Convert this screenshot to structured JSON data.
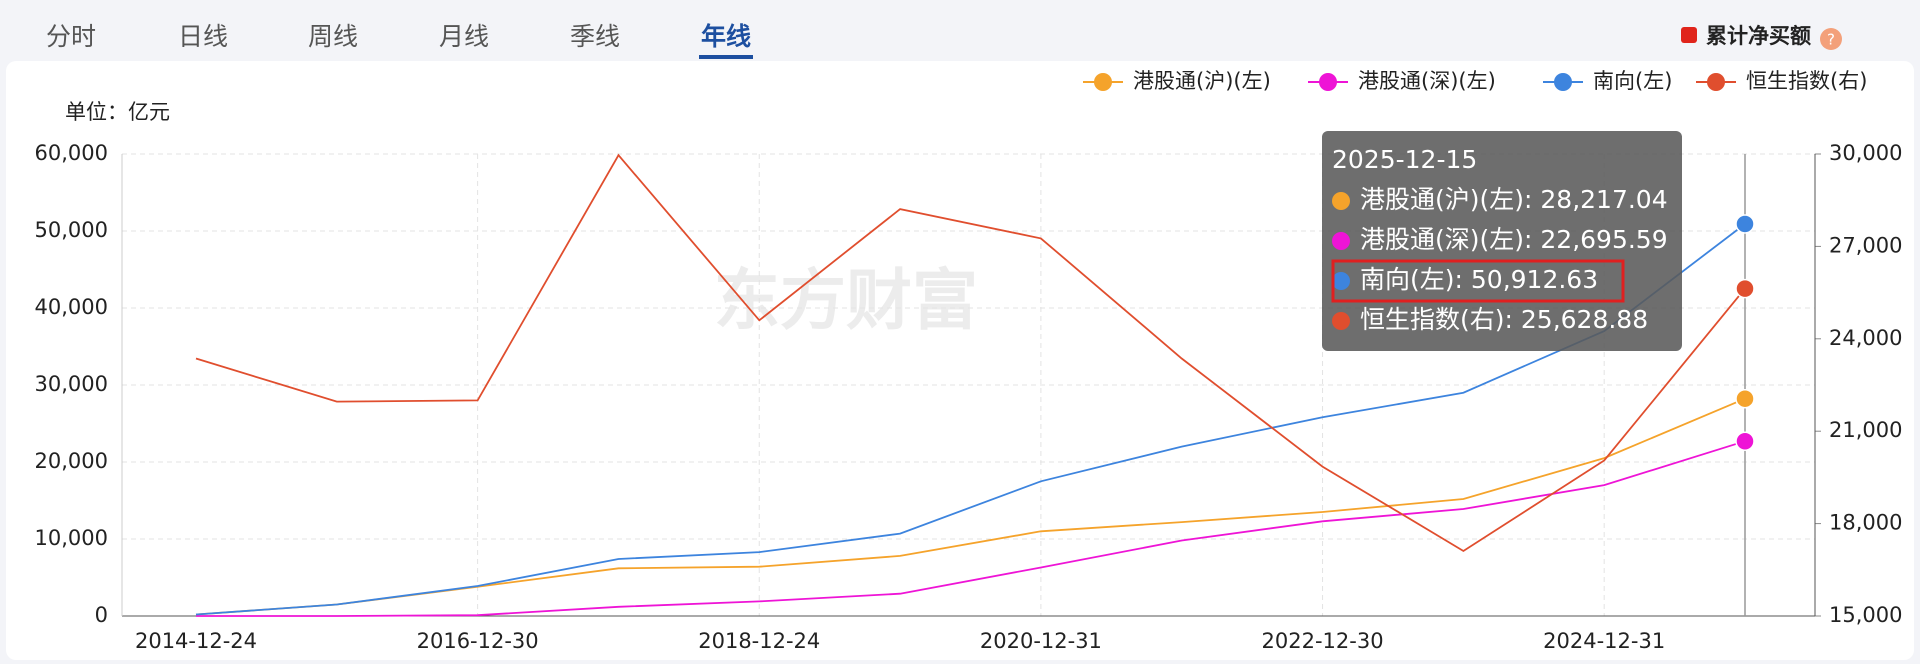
{
  "tabs": [
    "分时",
    "日线",
    "周线",
    "月线",
    "季线",
    "年线"
  ],
  "active_tab": 5,
  "toggle_label": "累计净买额",
  "help_icon": "?",
  "watermark": "东方财富",
  "chart_data": {
    "type": "line",
    "unit_label": "单位：亿元",
    "categories": [
      "2014-12-24",
      null,
      "2016-12-30",
      null,
      "2018-12-24",
      null,
      "2020-12-31",
      null,
      "2022-12-30",
      null,
      "2024-12-31",
      null
    ],
    "series": [
      {
        "name": "港股通(沪)(左)",
        "color": "#f5a32b",
        "values": [
          200,
          1500,
          3800,
          6200,
          6400,
          7800,
          11000,
          12200,
          13500,
          15200,
          20500,
          28217.04
        ]
      },
      {
        "name": "港股通(深)(左)",
        "color": "#ee14d6",
        "values": [
          0,
          0,
          100,
          1200,
          1900,
          2900,
          6300,
          9800,
          12300,
          13900,
          17000,
          22695.59
        ]
      },
      {
        "name": "南向(左)",
        "color": "#3d84de",
        "values": [
          200,
          1500,
          3900,
          7400,
          8300,
          10700,
          17500,
          22000,
          25800,
          29000,
          37000,
          50912.63
        ]
      },
      {
        "name": "恒生指数(右)",
        "color": "#e04e2e",
        "axis": "y2",
        "values": [
          23360,
          21960,
          22000,
          29960,
          24600,
          28210,
          27260,
          23360,
          19850,
          17110,
          20050,
          25628.88
        ]
      }
    ],
    "ylim": [
      0,
      60000
    ],
    "yticks": [
      0,
      {
        "value": 10000,
        "label": "10,000"
      },
      {
        "value": 20000,
        "label": "20,000"
      },
      {
        "value": 30000,
        "label": "30,000"
      },
      {
        "value": 40000,
        "label": "40,000"
      },
      {
        "value": 50000,
        "label": "50,000"
      },
      {
        "value": 60000,
        "label": "60,000"
      }
    ],
    "y2lim": [
      15000,
      30000
    ],
    "y2ticks": [
      {
        "value": 15000,
        "label": "15,000"
      },
      {
        "value": 18000,
        "label": "18,000"
      },
      {
        "value": 21000,
        "label": "21,000"
      },
      {
        "value": 24000,
        "label": "24,000"
      },
      {
        "value": 27000,
        "label": "27,000"
      },
      {
        "value": 30000,
        "label": "30,000"
      }
    ],
    "grid": true,
    "legend": "top-right",
    "hover_index": 11,
    "tooltip": {
      "title": "2025-12-15",
      "highlight": 2,
      "items": [
        "港股通(沪)(左): 28,217.04",
        "港股通(深)(左): 22,695.59",
        "南向(左): 50,912.63",
        "恒生指数(右): 25,628.88"
      ]
    }
  }
}
